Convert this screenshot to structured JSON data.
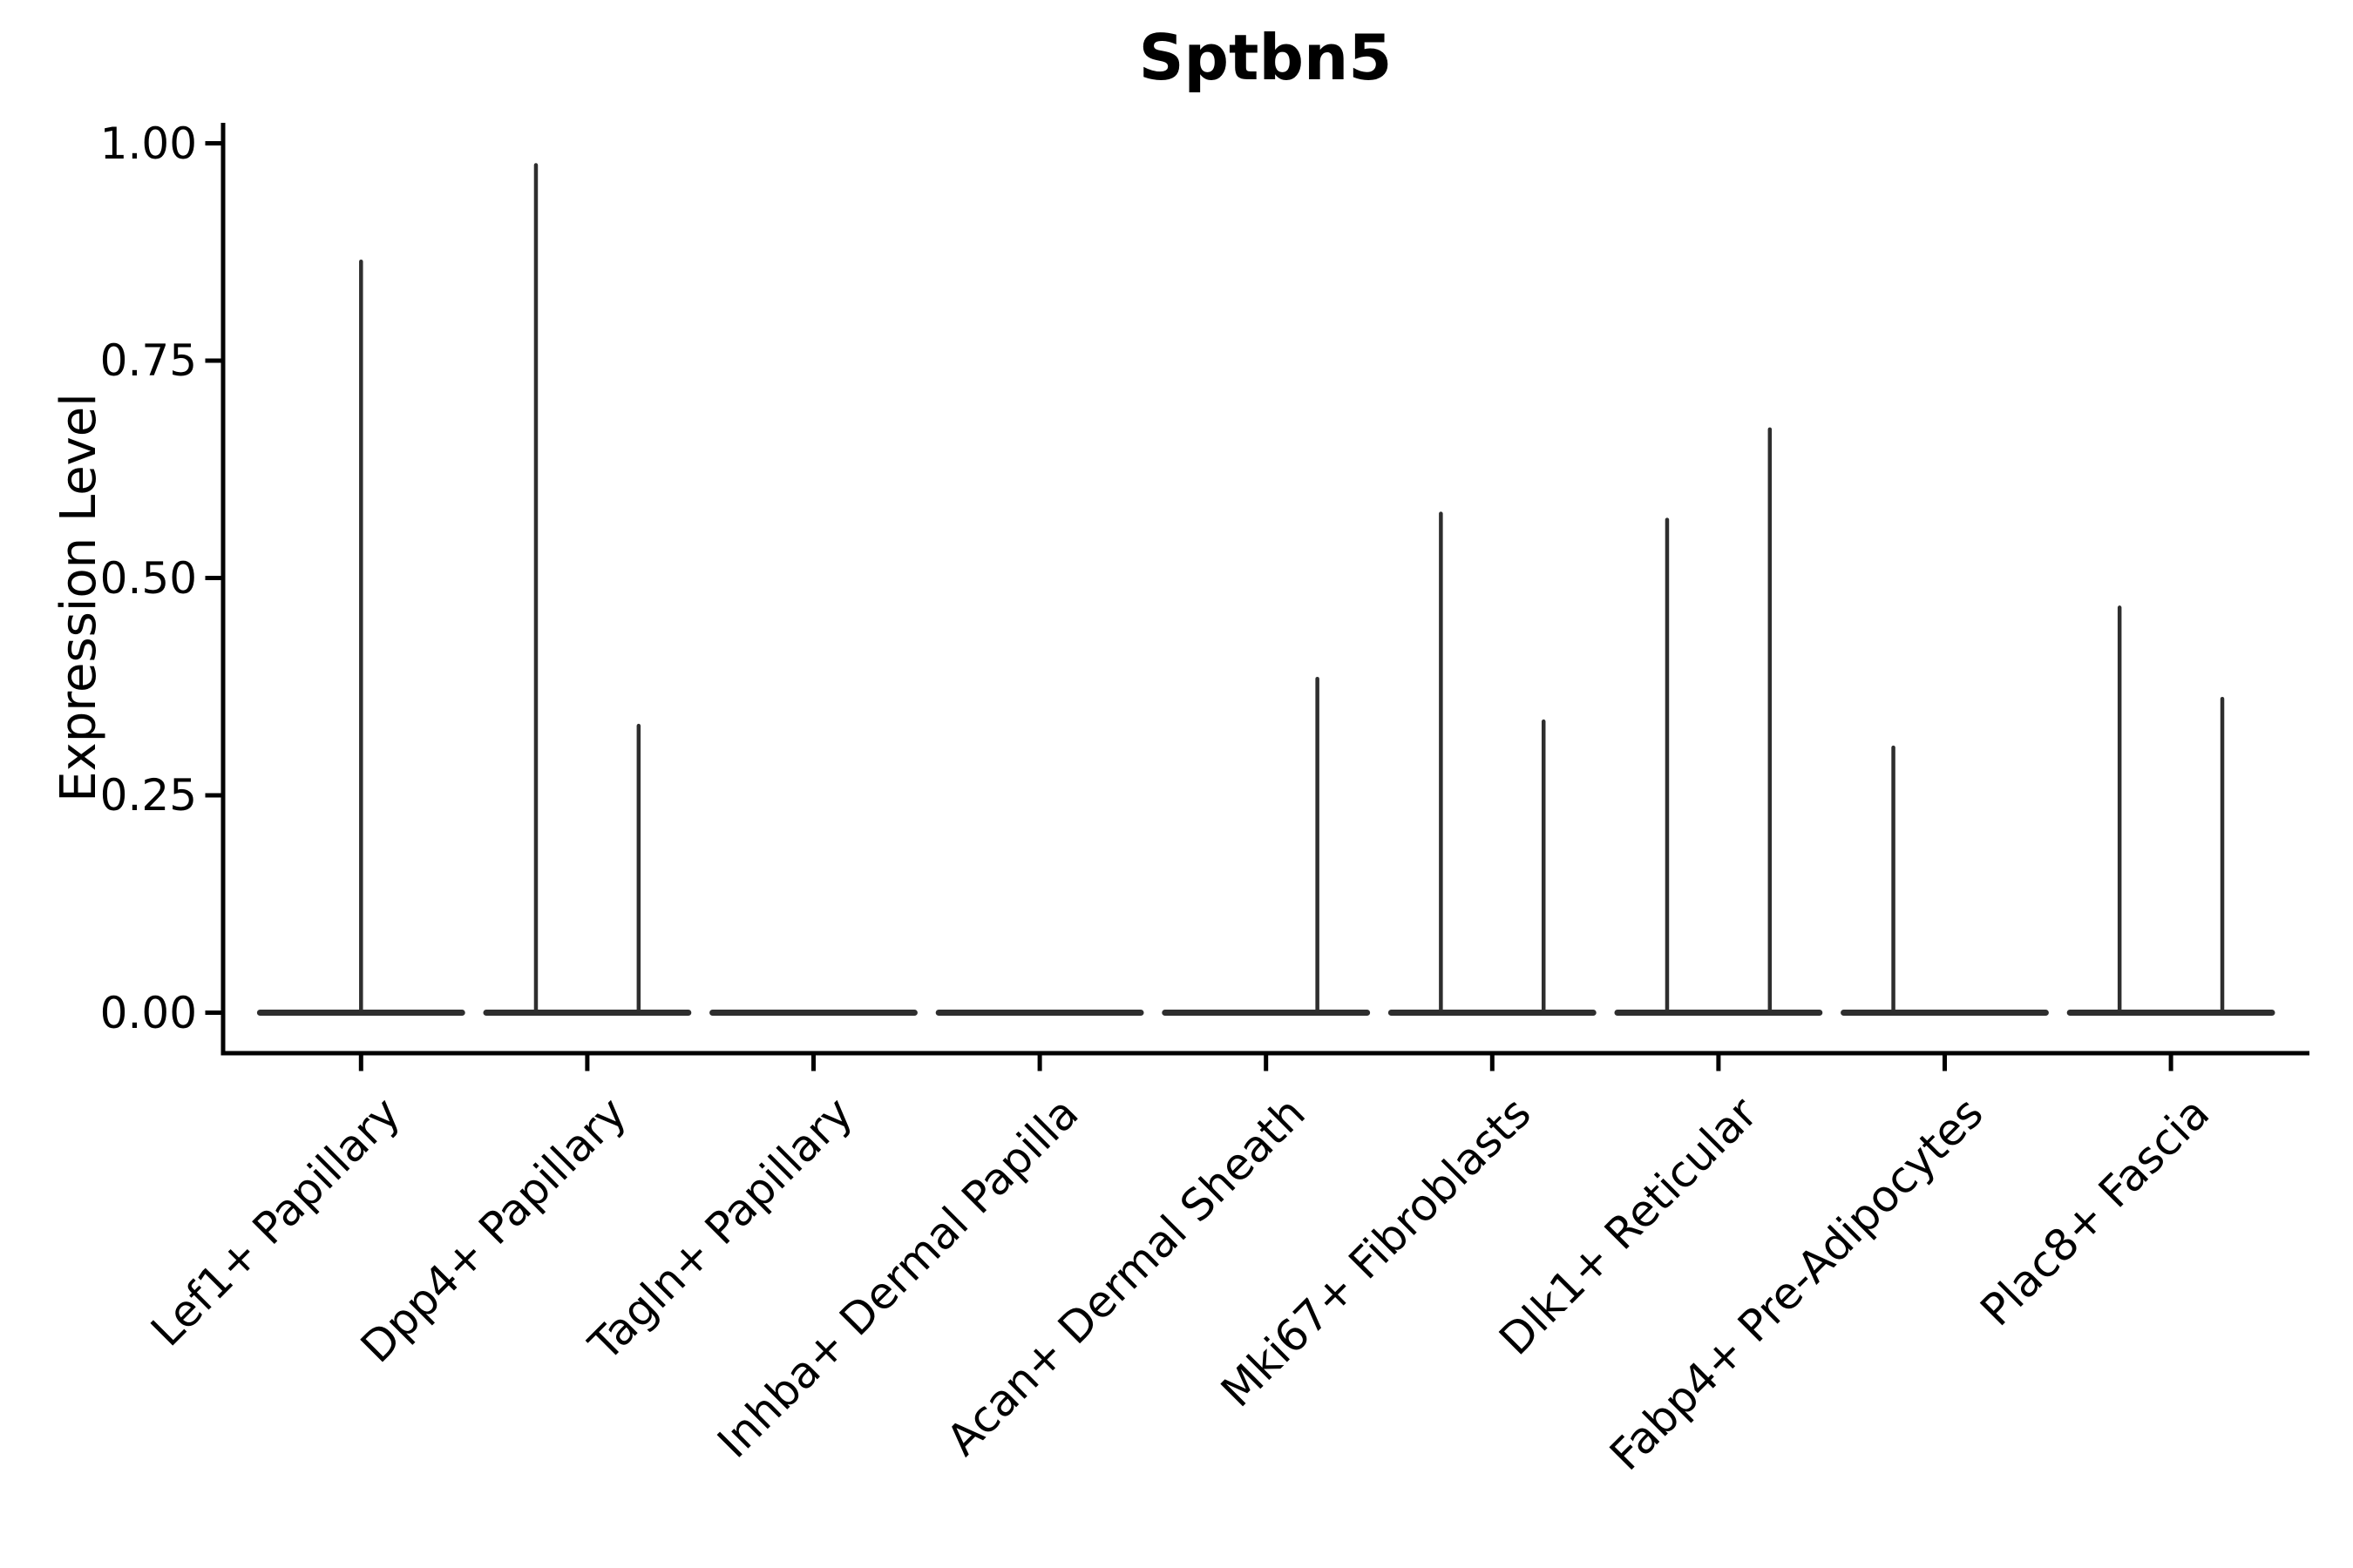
{
  "chart_data": {
    "type": "violin",
    "title": "Sptbn5",
    "ylabel": "Expression Level",
    "xlabel": "",
    "ylim": [
      0,
      1.0
    ],
    "yticks": [
      {
        "value": 0.0,
        "label": "0.00"
      },
      {
        "value": 0.25,
        "label": "0.25"
      },
      {
        "value": 0.5,
        "label": "0.50"
      },
      {
        "value": 0.75,
        "label": "0.75"
      },
      {
        "value": 1.0,
        "label": "1.00"
      }
    ],
    "x_tick_rotation_deg": 45,
    "grid": false,
    "legend": "none",
    "categories": [
      "Lef1+ Papillary",
      "Dpp4+ Papillary",
      "Tagln+ Papillary",
      "Inhba+ Dermal Papilla",
      "Acan+ Dermal Sheath",
      "Mki67+ Fibroblasts",
      "Dlk1+ Reticular",
      "Fabp4+ Pre-Adipocytes",
      "Plac8+ Fascia"
    ],
    "violins": [
      {
        "category": "Lef1+ Papillary",
        "zero_baseline": true,
        "spikes": [
          {
            "offset": 0.0,
            "peak": 0.864
          }
        ]
      },
      {
        "category": "Dpp4+ Papillary",
        "zero_baseline": true,
        "spikes": [
          {
            "offset": -0.227,
            "peak": 0.975
          },
          {
            "offset": 0.227,
            "peak": 0.33
          }
        ]
      },
      {
        "category": "Tagln+ Papillary",
        "zero_baseline": true,
        "spikes": []
      },
      {
        "category": "Inhba+ Dermal Papilla",
        "zero_baseline": true,
        "spikes": []
      },
      {
        "category": "Acan+ Dermal Sheath",
        "zero_baseline": true,
        "spikes": [
          {
            "offset": 0.227,
            "peak": 0.384
          }
        ]
      },
      {
        "category": "Mki67+ Fibroblasts",
        "zero_baseline": true,
        "spikes": [
          {
            "offset": -0.227,
            "peak": 0.574
          },
          {
            "offset": 0.227,
            "peak": 0.335
          }
        ]
      },
      {
        "category": "Dlk1+ Reticular",
        "zero_baseline": true,
        "spikes": [
          {
            "offset": -0.227,
            "peak": 0.567
          },
          {
            "offset": 0.227,
            "peak": 0.671
          }
        ]
      },
      {
        "category": "Fabp4+ Pre-Adipocytes",
        "zero_baseline": true,
        "spikes": [
          {
            "offset": -0.227,
            "peak": 0.305
          }
        ]
      },
      {
        "category": "Plac8+ Fascia",
        "zero_baseline": true,
        "spikes": [
          {
            "offset": -0.227,
            "peak": 0.466
          },
          {
            "offset": 0.227,
            "peak": 0.361
          }
        ]
      }
    ],
    "colors": {
      "ink": "#2e2e2e",
      "axis": "#000000",
      "background": "#ffffff"
    }
  }
}
